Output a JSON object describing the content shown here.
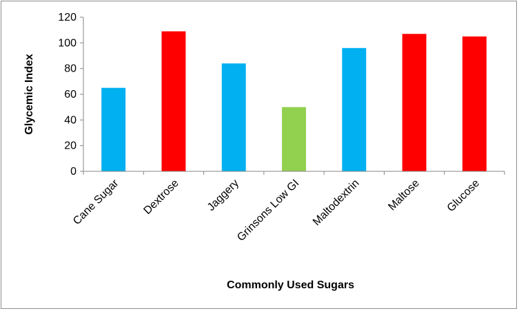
{
  "chart_data": {
    "type": "bar",
    "title": "",
    "xlabel": "Commonly Used Sugars",
    "ylabel": "Glycemic Index",
    "categories": [
      "Cane Sugar",
      "Dextrose",
      "Jaggery",
      "Grinsons Low GI",
      "Maltodextrin",
      "Maltose",
      "Glucose"
    ],
    "values": [
      65,
      109,
      84,
      50,
      96,
      107,
      105
    ],
    "bar_colors": [
      "#00b0f0",
      "#ff0000",
      "#00b0f0",
      "#92d050",
      "#00b0f0",
      "#ff0000",
      "#ff0000"
    ],
    "ylim": [
      0,
      120
    ],
    "yticks": [
      0,
      20,
      40,
      60,
      80,
      100,
      120
    ],
    "grid": false,
    "legend": "none"
  }
}
